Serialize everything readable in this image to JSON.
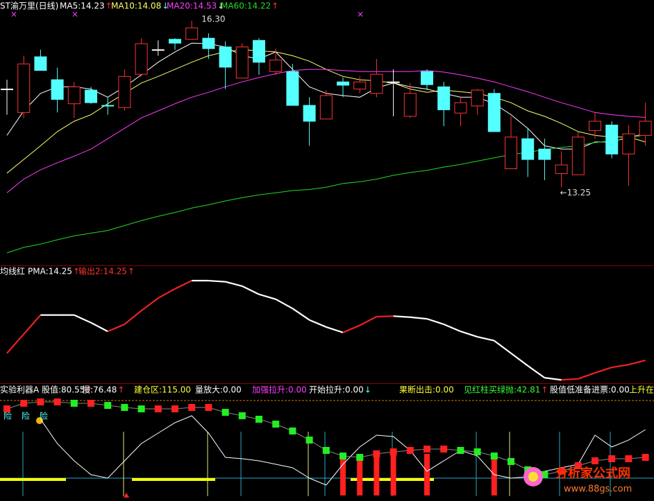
{
  "chart_data": [
    {
      "type": "candlestick",
      "title": "ST渝万里(日线)",
      "ylim": [
        11.82,
        16.68
      ],
      "up_color": "#ff3232",
      "down_color": "#54ffff",
      "doji_color": "#ffffff",
      "open": [
        15.05,
        14.62,
        15.64,
        15.22,
        14.78,
        15.03,
        14.75,
        14.71,
        15.32,
        15.77,
        15.96,
        15.96,
        15.98,
        15.82,
        15.25,
        15.94,
        15.37,
        15.37,
        14.75,
        14.5,
        15.18,
        15.05,
        14.97,
        15.18,
        14.55,
        15.37,
        15.09,
        14.61,
        14.74,
        14.97,
        13.59,
        14.14,
        13.95,
        13.5,
        13.48,
        14.29,
        14.39,
        13.86,
        14.2
      ],
      "high": [
        15.22,
        15.66,
        15.77,
        15.44,
        15.18,
        15.09,
        14.9,
        15.41,
        15.98,
        15.94,
        15.98,
        16.3,
        16.07,
        15.92,
        15.89,
        15.98,
        15.79,
        15.51,
        14.9,
        15.03,
        15.26,
        15.28,
        15.6,
        15.41,
        15.16,
        15.41,
        15.18,
        14.9,
        15.05,
        15.05,
        14.55,
        14.33,
        14.14,
        13.91,
        14.27,
        14.62,
        14.46,
        14.39,
        14.8
      ],
      "low": [
        14.58,
        14.52,
        15.39,
        14.62,
        14.52,
        14.78,
        14.58,
        14.65,
        15.28,
        15.66,
        15.77,
        15.96,
        15.6,
        15.05,
        15.25,
        15.31,
        15.31,
        14.75,
        14.01,
        14.5,
        14.9,
        14.97,
        14.9,
        14.55,
        14.52,
        15.03,
        14.37,
        14.37,
        14.58,
        14.27,
        13.59,
        13.44,
        13.38,
        13.25,
        13.48,
        14.14,
        13.78,
        13.28,
        14.01
      ],
      "close": [
        15.05,
        15.51,
        15.39,
        14.86,
        15.09,
        14.8,
        14.74,
        15.28,
        15.88,
        15.77,
        15.89,
        16.17,
        15.79,
        15.45,
        15.82,
        15.54,
        15.58,
        14.75,
        14.46,
        14.93,
        15.12,
        15.18,
        15.32,
        15.18,
        14.97,
        15.13,
        14.67,
        14.8,
        15.03,
        14.27,
        14.17,
        13.76,
        13.76,
        13.66,
        14.17,
        14.46,
        13.86,
        14.23,
        14.46
      ],
      "series": [
        {
          "name": "MA5:14.23",
          "color": "#ffffff",
          "arrow": "↑",
          "arrow_color": "#ff3232",
          "values": [
            14.2,
            14.65,
            14.97,
            15.09,
            15.09,
            15.05,
            14.9,
            15.09,
            15.31,
            15.54,
            15.73,
            15.89,
            15.88,
            15.82,
            15.66,
            15.6,
            15.73,
            15.41,
            15.09,
            14.97,
            14.93,
            14.9,
            15.07,
            15.16,
            15.09,
            15.05,
            14.97,
            14.9,
            14.9,
            14.78,
            14.58,
            14.33,
            14.01,
            13.95,
            13.95,
            14.08,
            14.08,
            14.17,
            14.23
          ]
        },
        {
          "name": "MA10:14.08",
          "color": "#ffff66",
          "arrow": "↓",
          "arrow_color": "#54ffff",
          "values": [
            13.51,
            13.76,
            14.01,
            14.27,
            14.46,
            14.58,
            14.78,
            14.97,
            15.16,
            15.28,
            15.41,
            15.54,
            15.66,
            15.73,
            15.77,
            15.75,
            15.73,
            15.66,
            15.56,
            15.41,
            15.28,
            15.22,
            15.2,
            15.16,
            15.05,
            14.99,
            15.03,
            15.0,
            14.97,
            14.9,
            14.8,
            14.65,
            14.55,
            14.42,
            14.27,
            14.2,
            14.17,
            14.17,
            14.08
          ]
        },
        {
          "name": "MA20:14.53",
          "color": "#ff3cff",
          "arrow": "↓",
          "arrow_color": "#ffffff",
          "values": [
            13.15,
            13.4,
            13.57,
            13.7,
            13.82,
            13.95,
            14.14,
            14.33,
            14.52,
            14.65,
            14.78,
            14.9,
            14.99,
            15.09,
            15.18,
            15.26,
            15.33,
            15.39,
            15.41,
            15.41,
            15.39,
            15.37,
            15.37,
            15.37,
            15.37,
            15.39,
            15.36,
            15.31,
            15.25,
            15.18,
            15.09,
            15.0,
            14.9,
            14.8,
            14.71,
            14.62,
            14.58,
            14.55,
            14.53
          ]
        },
        {
          "name": "MA60:14.22",
          "color": "#22dd22",
          "arrow": "↑",
          "arrow_color": "#ff3232",
          "values": [
            12.05,
            12.15,
            12.21,
            12.29,
            12.36,
            12.41,
            12.46,
            12.55,
            12.64,
            12.72,
            12.79,
            12.87,
            12.93,
            13.0,
            13.06,
            13.11,
            13.15,
            13.19,
            13.21,
            13.25,
            13.32,
            13.35,
            13.4,
            13.47,
            13.52,
            13.56,
            13.62,
            13.67,
            13.73,
            13.79,
            13.85,
            13.89,
            13.94,
            13.98,
            14.01,
            14.07,
            14.1,
            14.14,
            14.22
          ]
        }
      ],
      "annotations": [
        {
          "text": "16.30"
        },
        {
          "text": "←13.25"
        }
      ]
    },
    {
      "type": "signal-line",
      "title": "均线红",
      "ylim": [
        13.83,
        15.99
      ],
      "up_color": "#ee2222",
      "down_color": "#ffffff",
      "legend": [
        {
          "text": "PMA:14.25",
          "color": "#ffffff",
          "arrow": "↑",
          "arrow_color": "#ff3232"
        },
        {
          "text": "输出2:14.25",
          "color": "#ff3232",
          "arrow": "↑",
          "arrow_color": "#ff3232"
        }
      ],
      "values": [
        14.38,
        14.73,
        15.08,
        15.08,
        15.08,
        14.94,
        14.78,
        14.91,
        15.16,
        15.39,
        15.56,
        15.71,
        15.71,
        15.69,
        15.61,
        15.46,
        15.37,
        15.2,
        14.99,
        14.86,
        14.76,
        14.89,
        15.05,
        15.06,
        15.04,
        15.01,
        14.91,
        14.78,
        14.68,
        14.61,
        14.38,
        14.15,
        13.93,
        13.89,
        13.91,
        14.02,
        14.12,
        14.17,
        14.25
      ]
    },
    {
      "type": "indicator",
      "title": "实验利器A",
      "ylim": [
        70.07,
        87.37
      ],
      "legend": [
        {
          "text": "股值:80.55",
          "color": "#ffffff",
          "arrow": "↑",
          "arrow_color": "#ff3232"
        },
        {
          "text": "慢:76.48",
          "color": "#ffffff",
          "arrow": "↑",
          "arrow_color": "#ff3232"
        },
        {
          "text": "建仓区:115.00",
          "color": "#ffff33"
        },
        {
          "text": "量放大:0.00",
          "color": "#ffffff"
        },
        {
          "text": "加强拉升:0.00",
          "color": "#ff3cff"
        },
        {
          "text": "开始拉升:0.00",
          "color": "#ffffff",
          "arrow": "↓",
          "arrow_color": "#54ffff"
        },
        {
          "text": "果断出击:0.00",
          "color": "#ffff33"
        },
        {
          "text": "见红柱买绿抛:42.81",
          "color": "#33ff33",
          "arrow": "↑",
          "arrow_color": "#ff3232"
        },
        {
          "text": "股值低准备进票:0.00",
          "color": "#ffffff"
        },
        {
          "text": "上升在",
          "color": "#ffff33"
        }
      ],
      "warnings": [
        "险",
        "险",
        "险"
      ],
      "line": {
        "color": "#ffffff",
        "values": [
          null,
          null,
          82.08,
          78.51,
          75.97,
          73.94,
          73.43,
          75.97,
          78.51,
          80.04,
          81.57,
          82.59,
          80.04,
          76.48,
          76.28,
          75.97,
          75.46,
          74.95,
          73.43,
          72.41,
          75.46,
          78.01,
          79.74,
          79.53,
          77.5,
          74.44,
          75.97,
          77.5,
          76.68,
          73.94,
          73.43,
          73.63,
          74.44,
          74.95,
          75.46,
          79.74,
          78.01,
          79.02,
          80.55
        ]
      },
      "slow": {
        "up_color": "#ff2020",
        "down_color": "#22ee22",
        "values": [
          83.6,
          84.42,
          84.62,
          84.62,
          84.42,
          84.42,
          84.11,
          83.81,
          83.6,
          83.6,
          83.6,
          83.81,
          83.81,
          83.09,
          82.59,
          82.08,
          81.36,
          80.35,
          79.02,
          77.5,
          76.68,
          76.48,
          76.99,
          77.29,
          77.5,
          77.7,
          77.7,
          77.5,
          77.29,
          76.68,
          75.87,
          74.65,
          73.94,
          74.44,
          75.26,
          75.97,
          76.28,
          76.28,
          76.48
        ]
      },
      "bars": {
        "color": "#ff2020",
        "values": [
          null,
          null,
          null,
          null,
          null,
          null,
          null,
          null,
          null,
          null,
          null,
          null,
          null,
          null,
          null,
          null,
          null,
          null,
          null,
          null,
          76.99,
          76.99,
          76.99,
          76.99,
          null,
          76.99,
          null,
          null,
          null,
          76.99,
          null,
          null,
          null,
          null,
          null,
          null,
          null,
          null,
          null
        ]
      }
    }
  ],
  "watermark": {
    "title": "分析家公式网",
    "url": "www.88gs.com"
  }
}
